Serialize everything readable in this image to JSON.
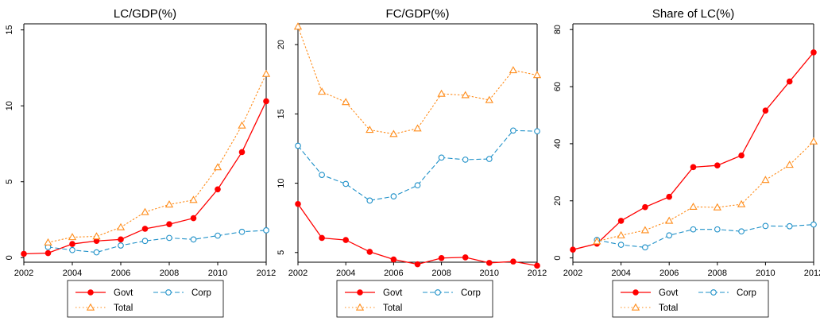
{
  "chart_data": [
    {
      "type": "line",
      "title": "LC/GDP(%)",
      "xlabel": "",
      "ylabel": "",
      "xlim": [
        2002,
        2012
      ],
      "ylim": [
        0,
        15
      ],
      "xticks": [
        2002,
        2004,
        2006,
        2008,
        2010,
        2012
      ],
      "yticks": [
        0,
        5,
        10,
        15
      ],
      "legend": {
        "position": "bottom",
        "entries": [
          "Govt",
          "Corp",
          "Total"
        ]
      },
      "grid": false,
      "series": [
        {
          "name": "Govt",
          "color": "#ff0000",
          "marker": "filled-circle",
          "line": "solid",
          "x": [
            2002,
            2003,
            2004,
            2005,
            2006,
            2007,
            2008,
            2009,
            2010,
            2011,
            2012
          ],
          "y": [
            0.25,
            0.3,
            0.9,
            1.1,
            1.2,
            1.9,
            2.2,
            2.6,
            4.5,
            6.95,
            10.3
          ]
        },
        {
          "name": "Corp",
          "color": "#1e90c8",
          "marker": "hollow-circle",
          "line": "dashed",
          "x": [
            2003,
            2004,
            2005,
            2006,
            2007,
            2008,
            2009,
            2010,
            2011,
            2012
          ],
          "y": [
            0.7,
            0.5,
            0.35,
            0.8,
            1.1,
            1.3,
            1.2,
            1.45,
            1.7,
            1.8
          ]
        },
        {
          "name": "Total",
          "color": "#ff8c1a",
          "marker": "hollow-triangle",
          "line": "dotted",
          "x": [
            2003,
            2004,
            2005,
            2006,
            2007,
            2008,
            2009,
            2010,
            2011,
            2012
          ],
          "y": [
            1.0,
            1.35,
            1.4,
            2.0,
            3.0,
            3.5,
            3.8,
            5.95,
            8.7,
            12.1
          ]
        }
      ]
    },
    {
      "type": "line",
      "title": "FC/GDP(%)",
      "xlabel": "",
      "ylabel": "",
      "xlim": [
        2002,
        2012
      ],
      "ylim": [
        4.0,
        21.5
      ],
      "xticks": [
        2002,
        2004,
        2006,
        2008,
        2010,
        2012
      ],
      "yticks": [
        5,
        10,
        15,
        20
      ],
      "legend": {
        "position": "bottom",
        "entries": [
          "Govt",
          "Corp",
          "Total"
        ]
      },
      "grid": false,
      "series": [
        {
          "name": "Govt",
          "color": "#ff0000",
          "marker": "filled-circle",
          "line": "solid",
          "x": [
            2002,
            2003,
            2004,
            2005,
            2006,
            2007,
            2008,
            2009,
            2010,
            2011,
            2012
          ],
          "y": [
            8.5,
            6.05,
            5.9,
            5.05,
            4.5,
            4.15,
            4.6,
            4.65,
            4.25,
            4.35,
            4.05
          ]
        },
        {
          "name": "Corp",
          "color": "#1e90c8",
          "marker": "hollow-circle",
          "line": "dashed",
          "x": [
            2002,
            2003,
            2004,
            2005,
            2006,
            2007,
            2008,
            2009,
            2010,
            2011,
            2012
          ],
          "y": [
            12.7,
            10.6,
            9.95,
            8.75,
            9.05,
            9.85,
            11.85,
            11.7,
            11.75,
            13.8,
            13.75
          ]
        },
        {
          "name": "Total",
          "color": "#ff8c1a",
          "marker": "hollow-triangle",
          "line": "dotted",
          "x": [
            2002,
            2003,
            2004,
            2005,
            2006,
            2007,
            2008,
            2009,
            2010,
            2011,
            2012
          ],
          "y": [
            21.3,
            16.6,
            15.85,
            13.85,
            13.55,
            13.95,
            16.45,
            16.35,
            16.0,
            18.15,
            17.8
          ]
        }
      ]
    },
    {
      "type": "line",
      "title": "Share of LC(%)",
      "xlabel": "",
      "ylabel": "",
      "xlim": [
        2002,
        2012
      ],
      "ylim": [
        0,
        82
      ],
      "xticks": [
        2002,
        2004,
        2006,
        2008,
        2010,
        2012
      ],
      "yticks": [
        0,
        20,
        40,
        60,
        80
      ],
      "legend": {
        "position": "bottom",
        "entries": [
          "Govt",
          "Corp",
          "Total"
        ]
      },
      "grid": false,
      "series": [
        {
          "name": "Govt",
          "color": "#ff0000",
          "marker": "filled-circle",
          "line": "solid",
          "x": [
            2002,
            2003,
            2004,
            2005,
            2006,
            2007,
            2008,
            2009,
            2010,
            2011,
            2012
          ],
          "y": [
            2.9,
            5.0,
            13.0,
            17.8,
            21.4,
            31.8,
            32.4,
            35.9,
            51.6,
            61.8,
            72.0
          ]
        },
        {
          "name": "Corp",
          "color": "#1e90c8",
          "marker": "hollow-circle",
          "line": "dashed",
          "x": [
            2003,
            2004,
            2005,
            2006,
            2007,
            2008,
            2009,
            2010,
            2011,
            2012
          ],
          "y": [
            6.3,
            4.6,
            3.7,
            7.9,
            10.0,
            10.0,
            9.3,
            11.2,
            11.1,
            11.7
          ]
        },
        {
          "name": "Total",
          "color": "#ff8c1a",
          "marker": "hollow-triangle",
          "line": "dotted",
          "x": [
            2003,
            2004,
            2005,
            2006,
            2007,
            2008,
            2009,
            2010,
            2011,
            2012
          ],
          "y": [
            5.8,
            7.9,
            9.7,
            13.0,
            17.9,
            17.7,
            18.8,
            27.3,
            32.6,
            40.8
          ]
        }
      ]
    }
  ]
}
